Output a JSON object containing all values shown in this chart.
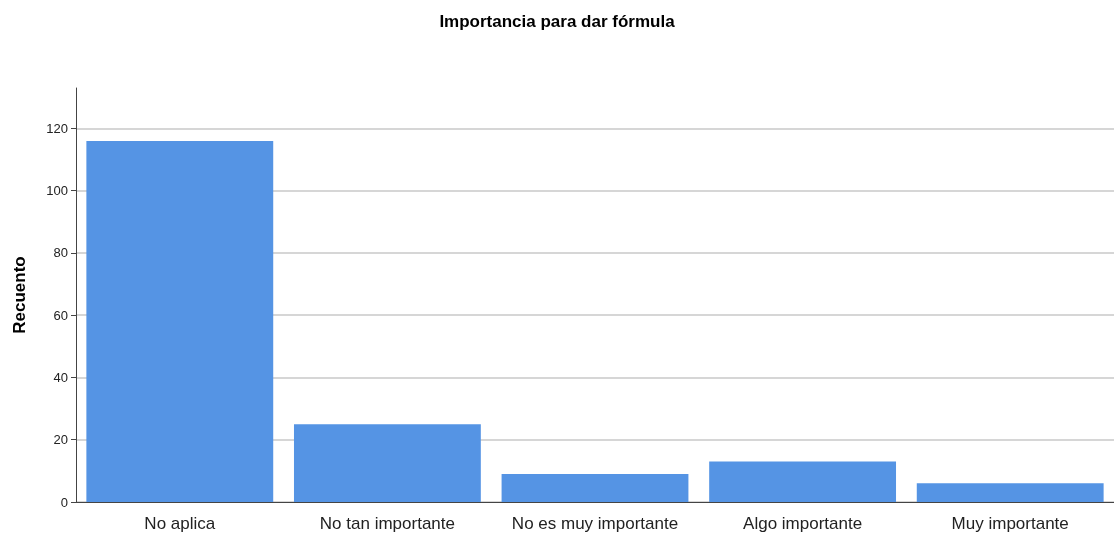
{
  "chart_data": {
    "type": "bar",
    "title": "Importancia para dar fórmula",
    "ylabel": "Recuento",
    "categories": [
      "No aplica",
      "No tan importante",
      "No es muy importante",
      "Algo importante",
      "Muy importante"
    ],
    "values": [
      116,
      25,
      9,
      13,
      6
    ],
    "color": "#5594e4",
    "ylim": [
      0,
      133
    ],
    "yticks": [
      0,
      20,
      40,
      60,
      80,
      100,
      120
    ],
    "grid": "y"
  }
}
